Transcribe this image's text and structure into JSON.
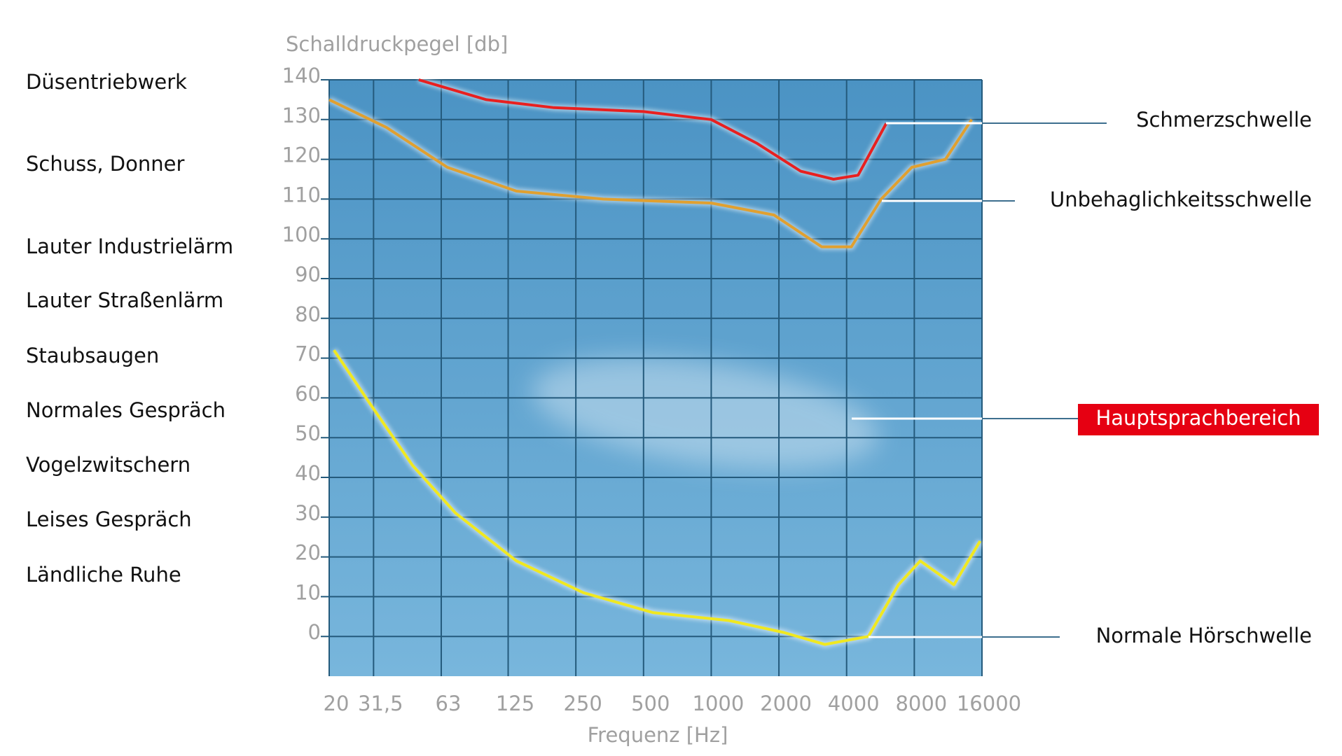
{
  "chart_data": {
    "type": "line",
    "x_label": "Frequenz [Hz]",
    "y_label": "Schalldruckpegel [db]",
    "xscale": "log",
    "xlim": [
      20,
      16000
    ],
    "xticks": [
      20,
      {
        "value": 31.5,
        "label": "31,5"
      },
      63,
      125,
      250,
      500,
      1000,
      2000,
      4000,
      8000,
      16000
    ],
    "ylim": [
      -10,
      140
    ],
    "yticks": [
      0,
      10,
      20,
      30,
      40,
      50,
      60,
      70,
      80,
      90,
      100,
      110,
      120,
      130,
      140
    ],
    "grid": true,
    "series": [
      {
        "name": "Schmerzschwelle",
        "color": "#e82020",
        "x": [
          50,
          100,
          200,
          500,
          1000,
          1600,
          2500,
          3500,
          4500,
          6000
        ],
        "values": [
          140,
          135,
          133,
          132,
          130,
          124,
          117,
          115,
          116,
          129
        ]
      },
      {
        "name": "Unbehaglichkeitsschwelle",
        "color": "#e0a030",
        "x": [
          20,
          36,
          67,
          136,
          330,
          1000,
          1900,
          3100,
          4200,
          5700,
          7800,
          11000,
          14400
        ],
        "values": [
          135,
          128,
          118,
          112,
          110,
          109,
          106,
          98,
          98,
          110,
          118,
          120,
          130
        ]
      },
      {
        "name": "Normale Hörschwelle",
        "color": "#f0e820",
        "x": [
          21,
          30,
          47,
          73,
          136,
          270,
          550,
          1200,
          2100,
          3200,
          5000,
          6800,
          8500,
          12000,
          15700
        ],
        "values": [
          72,
          59,
          43,
          31,
          19,
          11,
          6,
          4,
          1,
          -2,
          0,
          13,
          19,
          13,
          24
        ]
      }
    ],
    "annotation": "Hauptsprachbereich",
    "sound_examples": [
      "Düsentriebwerk",
      "Schuss, Donner",
      "Lauter Industrielärm",
      "Lauter Straßenlärm",
      "Staubsaugen",
      "Normales Gespräch",
      "Vogelzwitschern",
      "Leises Gespräch",
      "Ländliche Ruhe"
    ]
  }
}
